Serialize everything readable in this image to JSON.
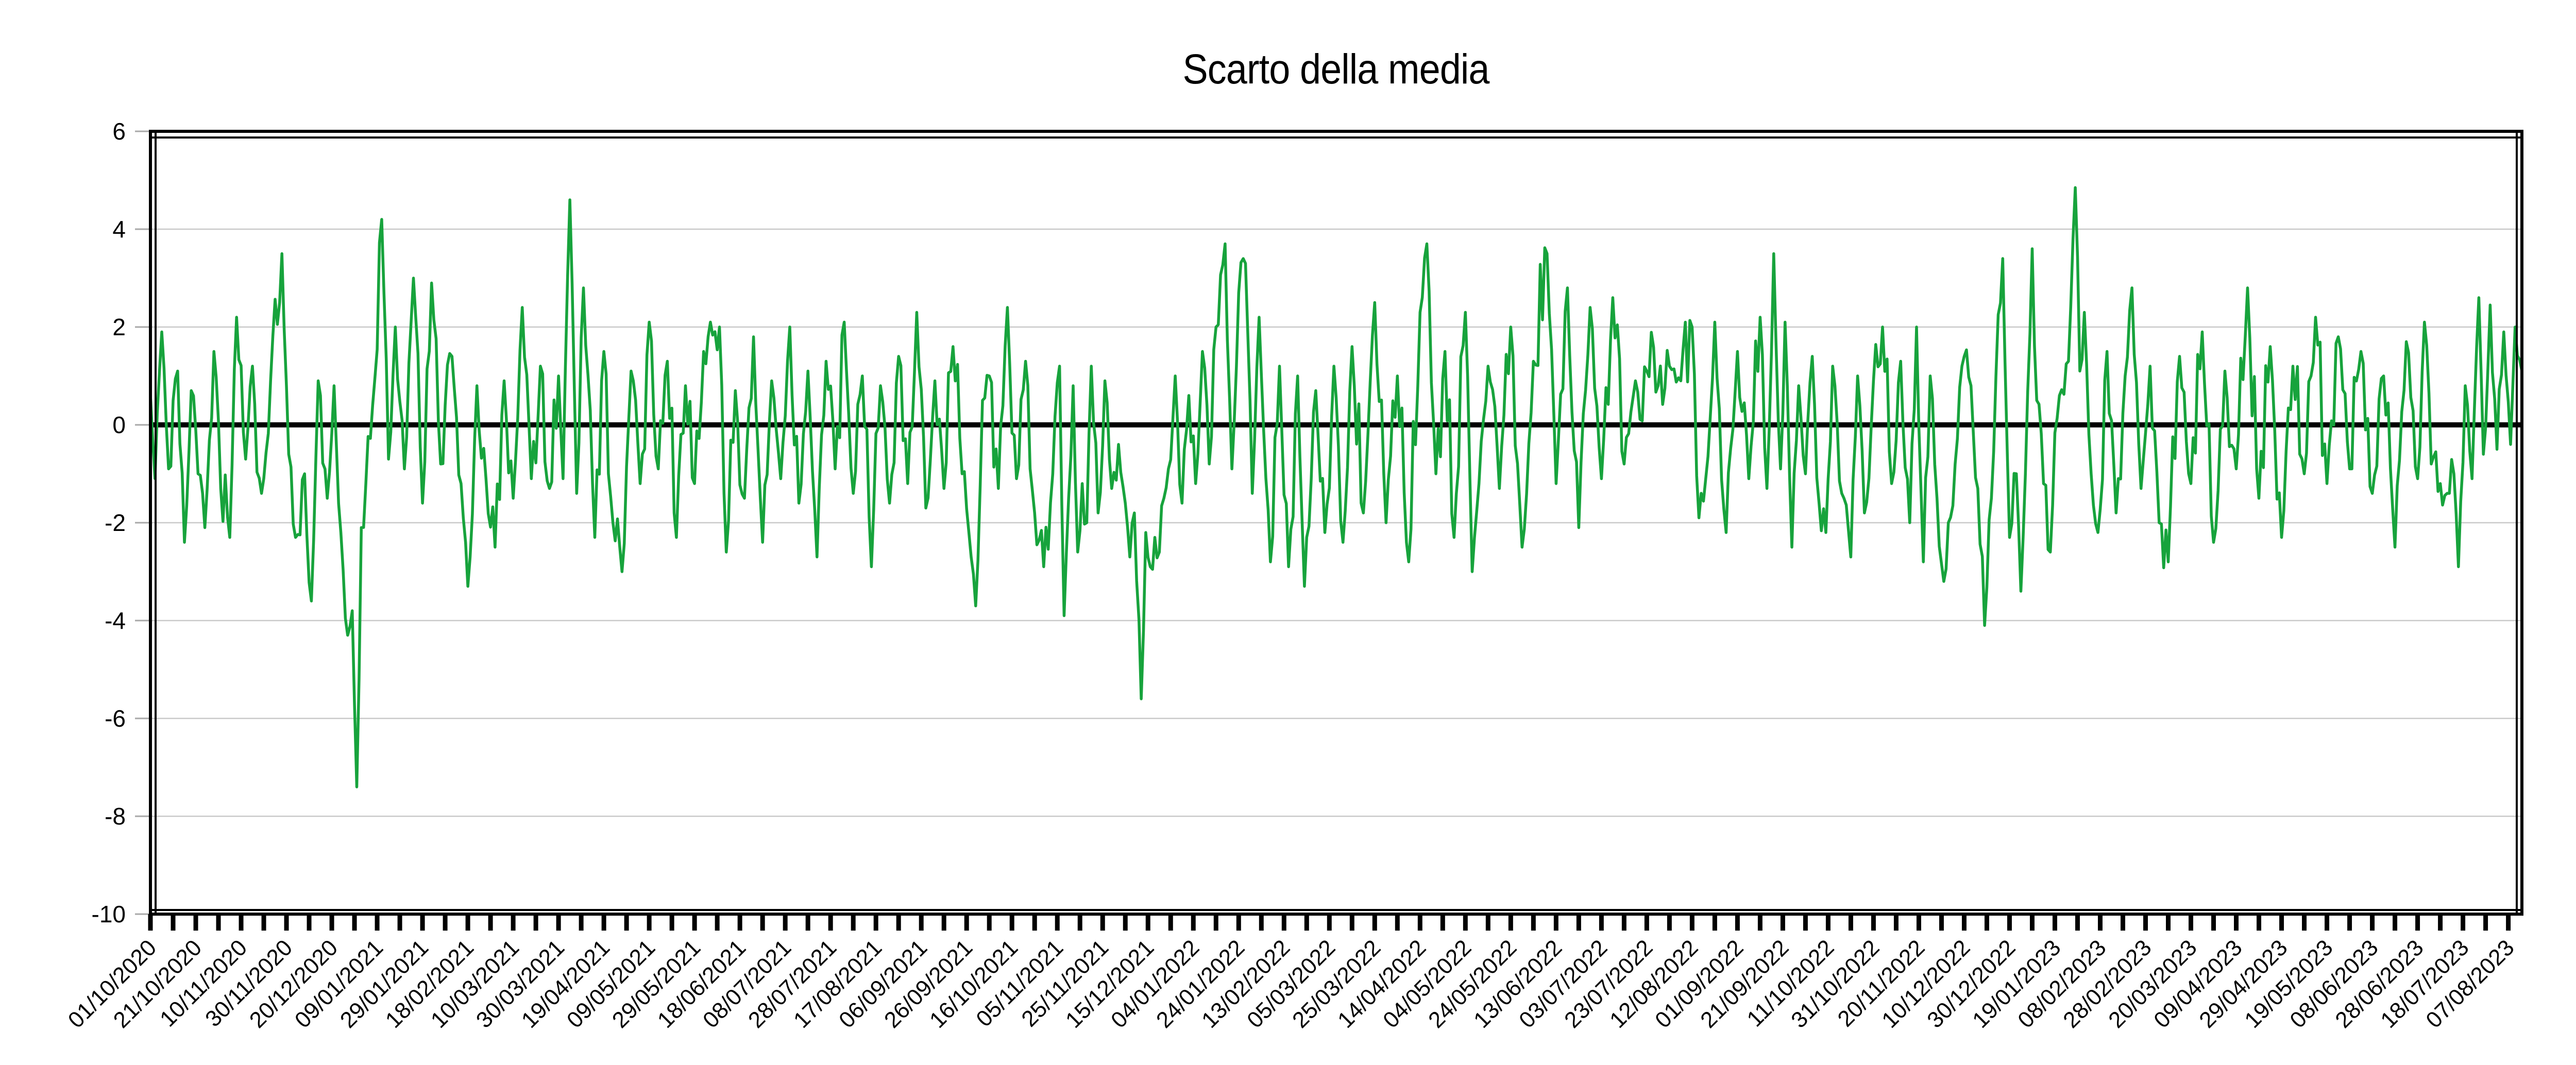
{
  "chart_data": {
    "type": "line",
    "title": "Scarto della media",
    "series_name": "Scarto della media",
    "line_color": "#17a33c",
    "zero_line_color": "#000000",
    "grid_color": "#c9c9c9",
    "axis_tick_color_y": "#a8a8a8",
    "axis_color": "#000000",
    "text_color": "#000000",
    "background_color": "#ffffff",
    "legend": "none",
    "grid": true,
    "ylim": [
      -10,
      6
    ],
    "y_tick_step": 2,
    "y_tick_labels": [
      "6",
      "4",
      "2",
      "0",
      "-2",
      "-4",
      "-6",
      "-8",
      "-10"
    ],
    "x_total_days": 1046,
    "x_label_interval_days": 20,
    "x_minor_tick_days": 10,
    "x_tick_labels": [
      "01/10/2020",
      "21/10/2020",
      "10/11/2020",
      "30/11/2020",
      "20/12/2020",
      "09/01/2021",
      "29/01/2021",
      "18/02/2021",
      "10/03/2021",
      "30/03/2021",
      "19/04/2021",
      "09/05/2021",
      "29/05/2021",
      "18/06/2021",
      "08/07/2021",
      "28/07/2021",
      "17/08/2021",
      "06/09/2021",
      "26/09/2021",
      "16/10/2021",
      "05/11/2021",
      "25/11/2021",
      "15/12/2021",
      "04/01/2022",
      "24/01/2022",
      "13/02/2022",
      "05/03/2022",
      "25/03/2022",
      "14/04/2022",
      "04/05/2022",
      "24/05/2022",
      "13/06/2022",
      "03/07/2022",
      "23/07/2022",
      "12/08/2022",
      "01/09/2022",
      "21/09/2022",
      "11/10/2022",
      "31/10/2022",
      "20/11/2022",
      "10/12/2022",
      "30/12/2022",
      "19/01/2023",
      "08/02/2023",
      "28/02/2023",
      "20/03/2023",
      "09/04/2023",
      "29/04/2023",
      "19/05/2023",
      "08/06/2023",
      "28/06/2023",
      "18/07/2023",
      "07/08/2023"
    ],
    "notable_points": [
      {
        "date": "31/12/2020",
        "value": -7.4
      },
      {
        "date": "12/12/2021",
        "value": -5.6
      },
      {
        "date": "19/12/2022",
        "value": -4.1
      },
      {
        "date": "04/04/2021",
        "value": 4.6
      },
      {
        "date": "11/01/2021",
        "value": 4.2
      },
      {
        "date": "28/01/2023",
        "value": 4.9
      },
      {
        "date": "28/11/2020",
        "value": 3.5
      },
      {
        "date": "18/01/2022",
        "value": 3.7
      }
    ],
    "series_synthesis": {
      "comment": "Daily deviation-from-mean values, 01/10/2020 .. one point per day. Anchors are [day_index, value] read from the plot; intermediate days are jagged noise around the interpolated anchors.",
      "seed": 20201001,
      "n_points": 1047,
      "noise_amp": 1.0,
      "anchors": [
        [
          0,
          0.6
        ],
        [
          2,
          -1.1
        ],
        [
          5,
          1.9
        ],
        [
          8,
          -0.9
        ],
        [
          12,
          1.1
        ],
        [
          15,
          -2.4
        ],
        [
          18,
          0.7
        ],
        [
          21,
          -1.0
        ],
        [
          24,
          -2.1
        ],
        [
          28,
          1.5
        ],
        [
          31,
          -1.3
        ],
        [
          35,
          -2.3
        ],
        [
          38,
          2.2
        ],
        [
          42,
          -0.7
        ],
        [
          45,
          1.2
        ],
        [
          49,
          -1.4
        ],
        [
          53,
          0.9
        ],
        [
          58,
          3.5
        ],
        [
          61,
          -0.6
        ],
        [
          64,
          -2.3
        ],
        [
          68,
          -1.0
        ],
        [
          71,
          -3.6
        ],
        [
          74,
          0.9
        ],
        [
          78,
          -1.5
        ],
        [
          81,
          0.8
        ],
        [
          84,
          -2.2
        ],
        [
          87,
          -4.3
        ],
        [
          89,
          -3.8
        ],
        [
          91,
          -7.4
        ],
        [
          93,
          -2.1
        ],
        [
          95,
          -1.2
        ],
        [
          98,
          0.4
        ],
        [
          102,
          4.2
        ],
        [
          105,
          -0.7
        ],
        [
          108,
          2.0
        ],
        [
          112,
          -0.9
        ],
        [
          116,
          3.0
        ],
        [
          120,
          -1.6
        ],
        [
          124,
          2.9
        ],
        [
          128,
          -0.8
        ],
        [
          133,
          1.4
        ],
        [
          137,
          -1.2
        ],
        [
          140,
          -3.3
        ],
        [
          144,
          0.8
        ],
        [
          148,
          -1.1
        ],
        [
          152,
          -2.5
        ],
        [
          156,
          0.9
        ],
        [
          160,
          -1.5
        ],
        [
          164,
          2.4
        ],
        [
          168,
          -1.1
        ],
        [
          172,
          1.2
        ],
        [
          176,
          -1.3
        ],
        [
          180,
          1.0
        ],
        [
          182,
          -1.1
        ],
        [
          185,
          4.6
        ],
        [
          188,
          -1.4
        ],
        [
          191,
          2.8
        ],
        [
          194,
          0.3
        ],
        [
          196,
          -2.3
        ],
        [
          200,
          1.5
        ],
        [
          204,
          -2.0
        ],
        [
          208,
          -3.0
        ],
        [
          212,
          1.1
        ],
        [
          216,
          -1.2
        ],
        [
          220,
          2.1
        ],
        [
          224,
          -0.9
        ],
        [
          228,
          1.3
        ],
        [
          232,
          -2.3
        ],
        [
          236,
          0.8
        ],
        [
          240,
          -1.2
        ],
        [
          244,
          1.5
        ],
        [
          247,
          2.1
        ],
        [
          251,
          2.0
        ],
        [
          254,
          -2.6
        ],
        [
          258,
          0.7
        ],
        [
          262,
          -1.5
        ],
        [
          266,
          1.8
        ],
        [
          270,
          -2.4
        ],
        [
          274,
          0.9
        ],
        [
          278,
          -1.1
        ],
        [
          282,
          2.0
        ],
        [
          286,
          -1.6
        ],
        [
          290,
          1.1
        ],
        [
          294,
          -2.7
        ],
        [
          298,
          1.3
        ],
        [
          302,
          -0.9
        ],
        [
          306,
          2.1
        ],
        [
          310,
          -1.4
        ],
        [
          314,
          1.0
        ],
        [
          318,
          -2.9
        ],
        [
          322,
          0.8
        ],
        [
          326,
          -1.6
        ],
        [
          330,
          1.4
        ],
        [
          334,
          -1.2
        ],
        [
          338,
          2.3
        ],
        [
          342,
          -1.7
        ],
        [
          346,
          0.9
        ],
        [
          350,
          -1.3
        ],
        [
          354,
          1.6
        ],
        [
          358,
          -1.0
        ],
        [
          361,
          -2.2
        ],
        [
          364,
          -3.7
        ],
        [
          367,
          0.5
        ],
        [
          370,
          1.0
        ],
        [
          374,
          -1.3
        ],
        [
          378,
          2.4
        ],
        [
          382,
          -1.1
        ],
        [
          386,
          1.3
        ],
        [
          390,
          -1.8
        ],
        [
          394,
          -2.9
        ],
        [
          398,
          -1.0
        ],
        [
          401,
          1.2
        ],
        [
          403,
          -3.9
        ],
        [
          405,
          -1.5
        ],
        [
          407,
          0.8
        ],
        [
          409,
          -2.6
        ],
        [
          411,
          -1.2
        ],
        [
          413,
          -2.0
        ],
        [
          415,
          1.2
        ],
        [
          418,
          -1.8
        ],
        [
          421,
          0.9
        ],
        [
          424,
          -1.3
        ],
        [
          427,
          -0.4
        ],
        [
          430,
          -1.6
        ],
        [
          432,
          -2.7
        ],
        [
          434,
          -1.8
        ],
        [
          437,
          -5.6
        ],
        [
          439,
          -2.2
        ],
        [
          441,
          -2.9
        ],
        [
          443,
          -2.3
        ],
        [
          445,
          -2.6
        ],
        [
          447,
          -1.5
        ],
        [
          449,
          -0.9
        ],
        [
          452,
          1.0
        ],
        [
          455,
          -1.6
        ],
        [
          458,
          0.6
        ],
        [
          461,
          -1.2
        ],
        [
          464,
          1.5
        ],
        [
          467,
          -0.8
        ],
        [
          470,
          2.0
        ],
        [
          474,
          3.7
        ],
        [
          477,
          -0.9
        ],
        [
          480,
          2.7
        ],
        [
          483,
          3.3
        ],
        [
          486,
          -1.4
        ],
        [
          489,
          2.2
        ],
        [
          492,
          -1.1
        ],
        [
          494,
          -2.8
        ],
        [
          498,
          1.2
        ],
        [
          502,
          -2.9
        ],
        [
          506,
          1.0
        ],
        [
          509,
          -3.3
        ],
        [
          512,
          -1.1
        ],
        [
          514,
          0.7
        ],
        [
          518,
          -2.2
        ],
        [
          522,
          1.2
        ],
        [
          526,
          -2.4
        ],
        [
          530,
          1.6
        ],
        [
          535,
          -1.8
        ],
        [
          540,
          2.5
        ],
        [
          545,
          -2.0
        ],
        [
          550,
          1.0
        ],
        [
          555,
          -2.8
        ],
        [
          560,
          2.3
        ],
        [
          563,
          3.7
        ],
        [
          567,
          -1.0
        ],
        [
          571,
          1.5
        ],
        [
          575,
          -2.3
        ],
        [
          580,
          2.3
        ],
        [
          583,
          -3.0
        ],
        [
          586,
          -1.2
        ],
        [
          590,
          1.2
        ],
        [
          595,
          -1.3
        ],
        [
          600,
          2.0
        ],
        [
          605,
          -2.5
        ],
        [
          610,
          1.3
        ],
        [
          616,
          3.5
        ],
        [
          620,
          -1.2
        ],
        [
          625,
          2.8
        ],
        [
          630,
          -2.1
        ],
        [
          635,
          2.4
        ],
        [
          640,
          -1.1
        ],
        [
          645,
          2.6
        ],
        [
          650,
          -0.8
        ],
        [
          655,
          0.9
        ],
        [
          660,
          1.1
        ],
        [
          665,
          0.8
        ],
        [
          670,
          1.2
        ],
        [
          675,
          0.9
        ],
        [
          680,
          2.0
        ],
        [
          683,
          -1.9
        ],
        [
          686,
          -1.1
        ],
        [
          690,
          2.1
        ],
        [
          695,
          -2.2
        ],
        [
          700,
          1.5
        ],
        [
          705,
          -1.1
        ],
        [
          710,
          2.2
        ],
        [
          713,
          -1.3
        ],
        [
          716,
          3.5
        ],
        [
          719,
          -0.9
        ],
        [
          721,
          2.1
        ],
        [
          724,
          -2.5
        ],
        [
          727,
          0.8
        ],
        [
          730,
          -1.0
        ],
        [
          733,
          1.4
        ],
        [
          736,
          -1.6
        ],
        [
          739,
          -2.2
        ],
        [
          742,
          1.2
        ],
        [
          746,
          -1.4
        ],
        [
          750,
          -2.7
        ],
        [
          753,
          1.0
        ],
        [
          756,
          -1.8
        ],
        [
          760,
          0.9
        ],
        [
          764,
          2.0
        ],
        [
          768,
          -1.2
        ],
        [
          772,
          1.3
        ],
        [
          776,
          -2.0
        ],
        [
          779,
          2.0
        ],
        [
          782,
          -2.8
        ],
        [
          785,
          1.0
        ],
        [
          788,
          -1.5
        ],
        [
          791,
          -3.2
        ],
        [
          793,
          -2.0
        ],
        [
          796,
          -0.8
        ],
        [
          800,
          1.4
        ],
        [
          803,
          0.8
        ],
        [
          806,
          -1.3
        ],
        [
          809,
          -4.1
        ],
        [
          812,
          -1.5
        ],
        [
          814,
          1.0
        ],
        [
          817,
          3.4
        ],
        [
          820,
          -2.3
        ],
        [
          823,
          -1.0
        ],
        [
          825,
          -3.4
        ],
        [
          827,
          -1.0
        ],
        [
          830,
          3.6
        ],
        [
          832,
          0.5
        ],
        [
          835,
          -1.2
        ],
        [
          838,
          -2.6
        ],
        [
          842,
          0.6
        ],
        [
          846,
          1.3
        ],
        [
          849,
          4.85
        ],
        [
          851,
          1.1
        ],
        [
          853,
          2.3
        ],
        [
          856,
          -1.0
        ],
        [
          859,
          -2.2
        ],
        [
          863,
          1.5
        ],
        [
          867,
          -1.8
        ],
        [
          871,
          1.0
        ],
        [
          874,
          2.8
        ],
        [
          878,
          -1.3
        ],
        [
          882,
          1.2
        ],
        [
          886,
          -2.0
        ],
        [
          890,
          -2.8
        ],
        [
          895,
          1.4
        ],
        [
          900,
          -1.2
        ],
        [
          905,
          1.9
        ],
        [
          910,
          -2.4
        ],
        [
          915,
          1.1
        ],
        [
          920,
          -0.9
        ],
        [
          925,
          2.8
        ],
        [
          930,
          -1.5
        ],
        [
          935,
          1.6
        ],
        [
          940,
          -2.3
        ],
        [
          945,
          1.2
        ],
        [
          950,
          -1.0
        ],
        [
          955,
          2.2
        ],
        [
          960,
          -1.2
        ],
        [
          965,
          1.8
        ],
        [
          970,
          -0.9
        ],
        [
          975,
          1.5
        ],
        [
          980,
          -1.4
        ],
        [
          985,
          1.0
        ],
        [
          990,
          -2.5
        ],
        [
          995,
          1.7
        ],
        [
          1000,
          -1.1
        ],
        [
          1003,
          2.1
        ],
        [
          1006,
          -0.8
        ],
        [
          1010,
          -1.2
        ],
        [
          1013,
          -1.4
        ],
        [
          1016,
          -1.0
        ],
        [
          1018,
          -2.9
        ],
        [
          1021,
          0.8
        ],
        [
          1024,
          -1.1
        ],
        [
          1027,
          2.6
        ],
        [
          1029,
          -0.6
        ],
        [
          1032,
          2.45
        ],
        [
          1035,
          -0.5
        ],
        [
          1038,
          1.9
        ],
        [
          1041,
          -0.4
        ],
        [
          1043,
          2.0
        ],
        [
          1046,
          1.1
        ]
      ]
    }
  }
}
